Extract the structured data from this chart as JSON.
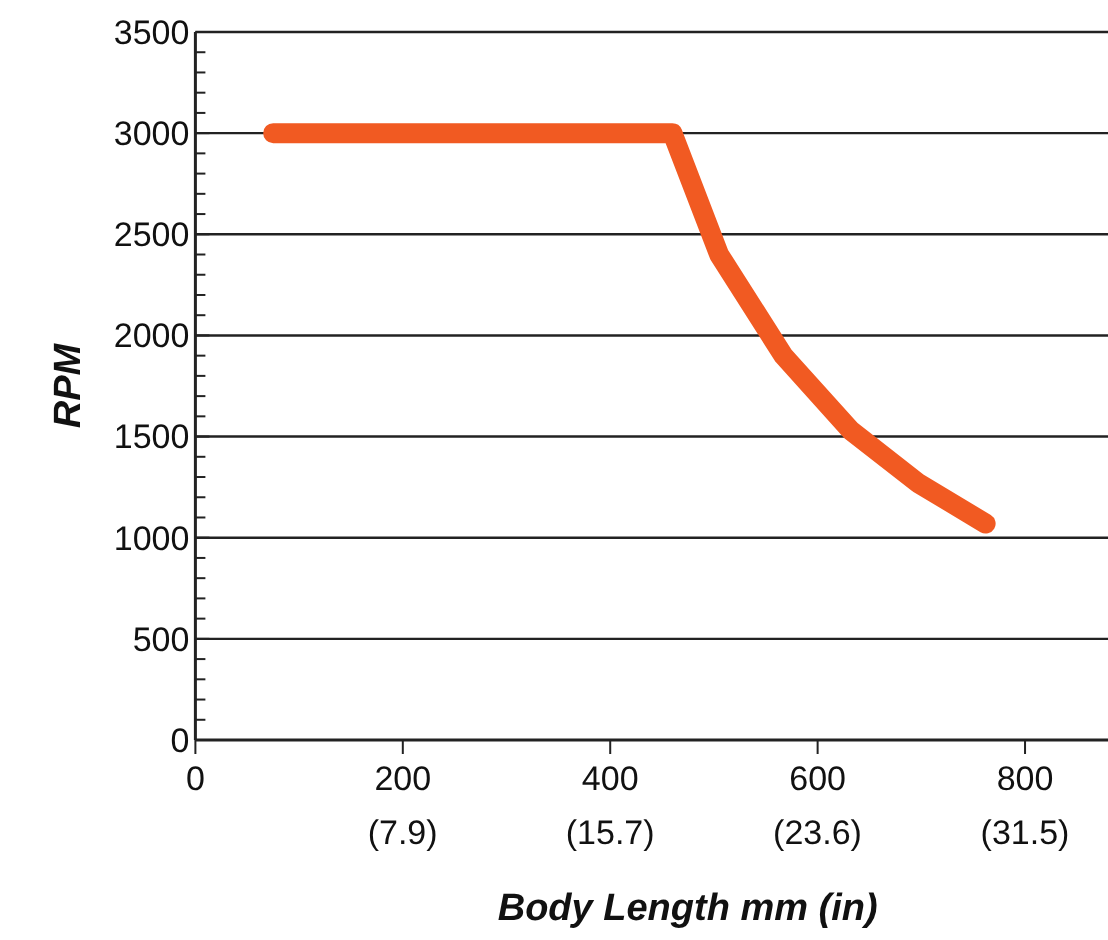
{
  "chart_data": {
    "type": "line",
    "xlabel": "Body Length mm (in)",
    "ylabel": "RPM",
    "x": [
      75,
      460,
      505,
      567,
      632,
      697,
      762
    ],
    "series": [
      {
        "color": "#f15a22",
        "values": [
          3000,
          3000,
          2400,
          1900,
          1530,
          1270,
          1070
        ]
      }
    ],
    "xlim": [
      0,
      880
    ],
    "xticks": [
      0,
      200,
      400,
      600,
      800
    ],
    "x2lim": [
      0,
      34.65
    ],
    "x2ticks": [
      {
        "value": 7.87,
        "label": "(7.9)"
      },
      {
        "value": 15.75,
        "label": "(15.7)"
      },
      {
        "value": 23.62,
        "label": "(23.6)"
      },
      {
        "value": 31.5,
        "label": "(31.5)"
      }
    ],
    "ylim": [
      0,
      3500
    ],
    "yticks": [
      0,
      {
        "value": 100,
        "label": null
      },
      {
        "value": 200,
        "label": null
      },
      {
        "value": 300,
        "label": null
      },
      {
        "value": 400,
        "label": null
      },
      500,
      {
        "value": 600,
        "label": null
      },
      {
        "value": 700,
        "label": null
      },
      {
        "value": 800,
        "label": null
      },
      {
        "value": 900,
        "label": null
      },
      1000,
      {
        "value": 1100,
        "label": null
      },
      {
        "value": 1200,
        "label": null
      },
      {
        "value": 1300,
        "label": null
      },
      {
        "value": 1400,
        "label": null
      },
      1500,
      {
        "value": 1600,
        "label": null
      },
      {
        "value": 1700,
        "label": null
      },
      {
        "value": 1800,
        "label": null
      },
      {
        "value": 1900,
        "label": null
      },
      2000,
      {
        "value": 2100,
        "label": null
      },
      {
        "value": 2200,
        "label": null
      },
      {
        "value": 2300,
        "label": null
      },
      {
        "value": 2400,
        "label": null
      },
      2500,
      {
        "value": 2600,
        "label": null
      },
      {
        "value": 2700,
        "label": null
      },
      {
        "value": 2800,
        "label": null
      },
      {
        "value": 2900,
        "label": null
      },
      3000,
      {
        "value": 3100,
        "label": null
      },
      {
        "value": 3200,
        "label": null
      },
      {
        "value": 3300,
        "label": null
      },
      {
        "value": 3400,
        "label": null
      },
      3500
    ],
    "grid": "y",
    "line_style": "solid",
    "marker": "none"
  }
}
